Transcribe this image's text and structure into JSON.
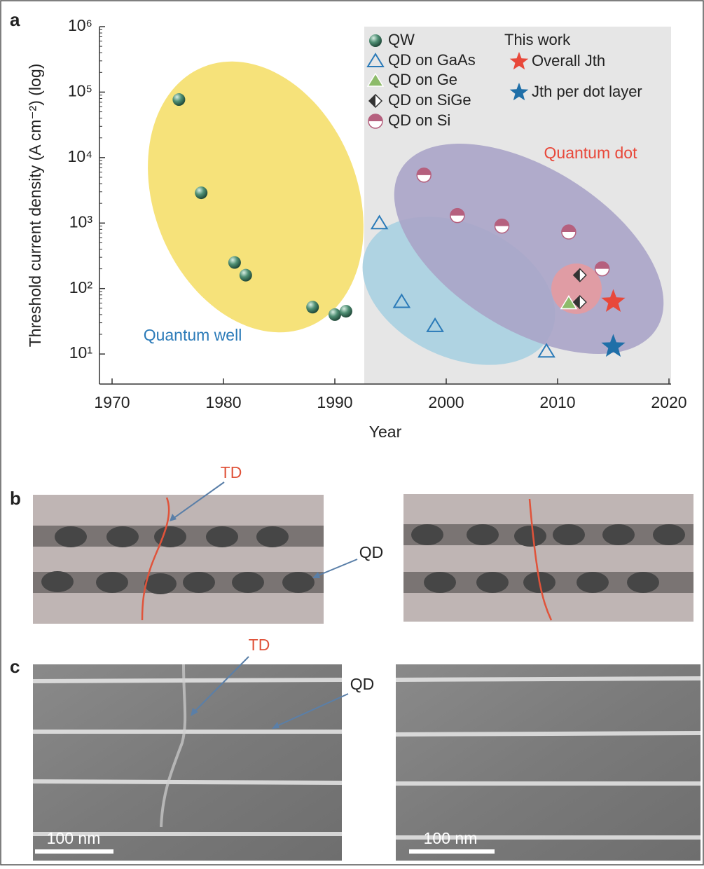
{
  "chart_data": {
    "type": "scatter",
    "panel_label": "a",
    "x_label": "Year",
    "y_label": "Threshold current density (A cm⁻²) (log)",
    "log_y": true,
    "xlim": [
      1970,
      2020
    ],
    "xticks": [
      1970,
      1980,
      1990,
      2000,
      2010,
      2020
    ],
    "ylim": [
      3,
      1000000
    ],
    "yticks": [
      {
        "value": 10,
        "label": "10¹"
      },
      {
        "value": 100,
        "label": "10²"
      },
      {
        "value": 1000,
        "label": "10³"
      },
      {
        "value": 10000,
        "label": "10⁴"
      },
      {
        "value": 100000,
        "label": "10⁵"
      },
      {
        "value": 1000000,
        "label": "10⁶"
      }
    ],
    "series": [
      {
        "name": "QW",
        "color": "#4f8f74",
        "marker": "sphere",
        "x": [
          1976,
          1978,
          1981,
          1982,
          1988,
          1990,
          1991
        ],
        "values": [
          77000,
          2900,
          250,
          160,
          52,
          40,
          45
        ]
      },
      {
        "name": "QD on GaAs",
        "color": "#2a7ab8",
        "marker": "triangle-open",
        "x": [
          1994,
          1996,
          1999,
          2009
        ],
        "values": [
          1000,
          63,
          27,
          11
        ]
      },
      {
        "name": "QD on Ge",
        "color": "#8dbb6a",
        "marker": "triangle",
        "x": [
          2011
        ],
        "values": [
          60
        ]
      },
      {
        "name": "QD on SiGe",
        "color": "#333333",
        "marker": "diamond-half",
        "x": [
          2012,
          2012
        ],
        "values": [
          160,
          62
        ]
      },
      {
        "name": "QD on Si",
        "color": "#b5607e",
        "marker": "circle-half",
        "x": [
          1998,
          2001,
          2005,
          2011,
          2014
        ],
        "values": [
          5400,
          1300,
          900,
          730,
          200
        ]
      },
      {
        "name": "Overall Jth",
        "color": "#e8483a",
        "marker": "star",
        "x": [
          2015
        ],
        "values": [
          63
        ]
      },
      {
        "name": "Jth per dot layer",
        "color": "#1f6fa8",
        "marker": "star",
        "x": [
          2015
        ],
        "values": [
          13
        ]
      }
    ],
    "legend_group_title": "This work",
    "annotations": [
      "Quantum well",
      "Quantum dot"
    ]
  },
  "panel_b": {
    "label": "b",
    "td": "TD",
    "qd": "QD"
  },
  "panel_c": {
    "label": "c",
    "td": "TD",
    "qd": "QD",
    "scale_bars": [
      "100 nm",
      "100 nm"
    ]
  }
}
